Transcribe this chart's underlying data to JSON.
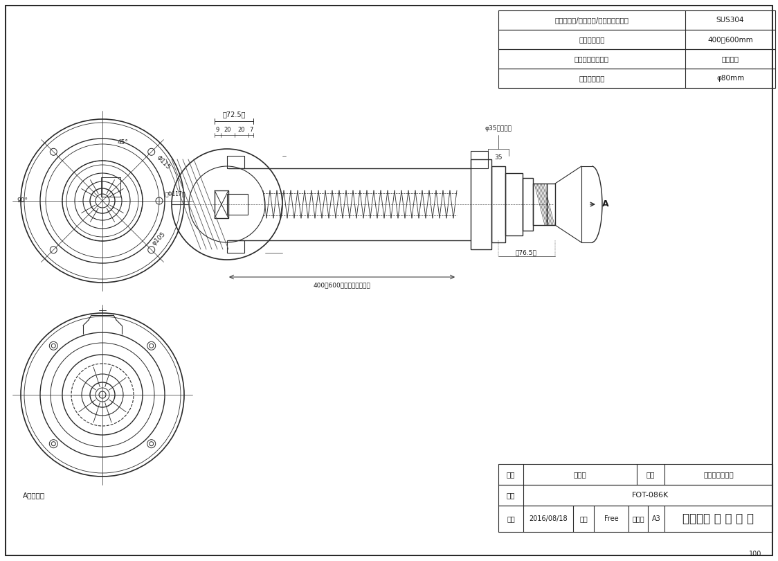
{
  "bg_color": "#ffffff",
  "line_color": "#2a2a2a",
  "thin_line": 0.5,
  "medium_line": 1.0,
  "thick_line": 1.5,
  "border_color": "#1a1a1a",
  "title_table": {
    "rows": [
      [
        "材質（本体/スリーブ/チャンバー室）",
        "SUS304"
      ],
      [
        "壁厚調整範囲",
        "400〜600mm"
      ],
      [
        "排気吹き出し方向",
        "斜め全周"
      ],
      [
        "壁貫通部穴径",
        "φ80mm"
      ]
    ]
  },
  "bottom_table": {
    "name_label": "名称",
    "name_value": "外観図",
    "hiname_label": "品名",
    "hiname_value": "ウォールトップ",
    "model_label": "型式",
    "model_value": "FOT-086K",
    "date_label": "作成",
    "date_value": "2016/08/18",
    "scale_label": "尺度",
    "scale_value": "Free",
    "size_label": "サイズ",
    "size_value": "A3",
    "company": "リンナイ 株 式 会 社"
  },
  "label_A": "A",
  "label_A_kara": "Aカラ見ル",
  "page_num": "100",
  "dim_labels": {
    "top_width": "（72.5）",
    "d9": "9",
    "d20a": "20",
    "d20b": "20",
    "d7": "7",
    "d35_outer": "φ35（外径）",
    "d35": "35",
    "wall_range": "400〜600（壁厚調整範囲）",
    "d76": "（76.5）",
    "angle45": "45°",
    "angle90": "90°",
    "phi115": "Φ115",
    "phi117": "（Φ117）",
    "phi105": "φ105"
  }
}
